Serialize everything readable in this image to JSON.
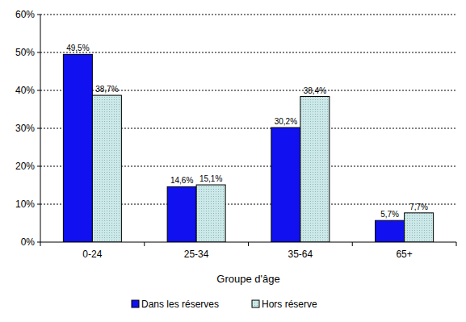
{
  "chart_data": {
    "type": "bar",
    "x_label": "Groupe d'âge",
    "categories": [
      "0-24",
      "25-34",
      "35-64",
      "65+"
    ],
    "series": [
      {
        "name": "Dans les réserves",
        "color": "#1010f0",
        "values": [
          49.5,
          14.6,
          30.2,
          5.7
        ],
        "value_labels": [
          "49,5%",
          "14,6%",
          "30,2%",
          "5,7%"
        ]
      },
      {
        "name": "Hors réserve",
        "color": "#cce8e8",
        "values": [
          38.7,
          15.1,
          38.4,
          7.7
        ],
        "value_labels": [
          "38,7%",
          "15,1%",
          "38,4%",
          "7,7%"
        ]
      }
    ],
    "ylim": [
      0,
      60
    ],
    "yticks": [
      {
        "value": 0,
        "label": "0%"
      },
      {
        "value": 10,
        "label": "10%"
      },
      {
        "value": 20,
        "label": "20%"
      },
      {
        "value": 30,
        "label": "30%"
      },
      {
        "value": 40,
        "label": "40%"
      },
      {
        "value": 50,
        "label": "50%"
      },
      {
        "value": 60,
        "label": "60%"
      }
    ],
    "grid": true,
    "data_labels": true,
    "legend": "bottom"
  }
}
